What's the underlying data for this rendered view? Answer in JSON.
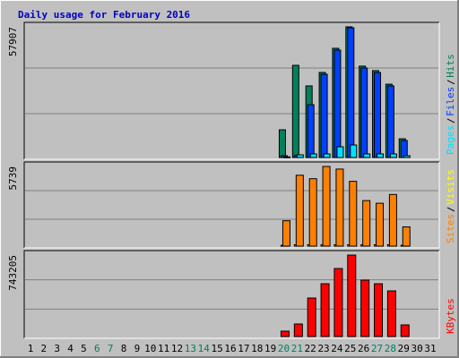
{
  "chart_data": [
    {
      "type": "bar",
      "title": "Daily usage for February 2016",
      "ylim": [
        0,
        57907
      ],
      "yticks": [
        57907
      ],
      "series": [
        {
          "name": "Hits",
          "color": "#00805c",
          "values": [
            null,
            null,
            null,
            null,
            null,
            null,
            null,
            null,
            null,
            null,
            null,
            null,
            null,
            null,
            null,
            null,
            null,
            null,
            null,
            12295,
            40852,
            31730,
            37700,
            48400,
            57907,
            40500,
            38500,
            32500,
            8300,
            null,
            null
          ]
        },
        {
          "name": "Files",
          "color": "#0040ff",
          "values": [
            null,
            null,
            null,
            null,
            null,
            null,
            null,
            null,
            null,
            null,
            null,
            null,
            null,
            null,
            null,
            null,
            null,
            null,
            null,
            800,
            900,
            23401,
            36886,
            47595,
            57500,
            39663,
            37679,
            31730,
            7536,
            null,
            null
          ]
        },
        {
          "name": "Pages",
          "color": "#00e0ff",
          "values": [
            null,
            null,
            null,
            null,
            null,
            null,
            null,
            null,
            null,
            null,
            null,
            null,
            null,
            null,
            null,
            null,
            null,
            null,
            null,
            300,
            1200,
            1600,
            1600,
            4759,
            5553,
            1600,
            1600,
            1600,
            800,
            null,
            null
          ]
        }
      ]
    },
    {
      "type": "bar",
      "ylim": [
        0,
        5739
      ],
      "yticks": [
        5739
      ],
      "series": [
        {
          "name": "Visits",
          "color": "#ffff00",
          "values": [
            null,
            null,
            null,
            null,
            null,
            null,
            null,
            null,
            null,
            null,
            null,
            null,
            null,
            null,
            null,
            null,
            null,
            null,
            null,
            60,
            100,
            100,
            100,
            100,
            100,
            100,
            100,
            100,
            60,
            null,
            null
          ]
        },
        {
          "name": "Sites",
          "color": "#ff8000",
          "values": [
            null,
            null,
            null,
            null,
            null,
            null,
            null,
            null,
            null,
            null,
            null,
            null,
            null,
            null,
            null,
            null,
            null,
            null,
            null,
            1829,
            5108,
            4856,
            5739,
            5550,
            4667,
            3279,
            3090,
            3721,
            1387,
            null,
            null
          ]
        }
      ]
    },
    {
      "type": "bar",
      "ylim": [
        0,
        743205
      ],
      "yticks": [
        743205
      ],
      "categories": [
        "1",
        "2",
        "3",
        "4",
        "5",
        "6",
        "7",
        "8",
        "9",
        "10",
        "11",
        "12",
        "13",
        "14",
        "15",
        "16",
        "17",
        "18",
        "19",
        "20",
        "21",
        "22",
        "23",
        "24",
        "25",
        "26",
        "27",
        "28",
        "29",
        "30",
        "31"
      ],
      "category_colors": [
        "#000000",
        "#000000",
        "#000000",
        "#000000",
        "#000000",
        "#00805c",
        "#00805c",
        "#000000",
        "#000000",
        "#000000",
        "#000000",
        "#000000",
        "#00805c",
        "#00805c",
        "#000000",
        "#000000",
        "#000000",
        "#000000",
        "#000000",
        "#00805c",
        "#00805c",
        "#000000",
        "#000000",
        "#000000",
        "#000000",
        "#000000",
        "#00805c",
        "#00805c",
        "#000000",
        "#000000",
        "#000000"
      ],
      "series": [
        {
          "name": "KBytes",
          "color": "#ff0000",
          "values": [
            null,
            null,
            null,
            null,
            null,
            null,
            null,
            null,
            null,
            null,
            null,
            null,
            null,
            null,
            null,
            null,
            null,
            null,
            null,
            49000,
            114339,
            351185,
            481860,
            620700,
            743205,
            514530,
            481860,
            416521,
            106172,
            null,
            null
          ]
        }
      ]
    }
  ]
}
